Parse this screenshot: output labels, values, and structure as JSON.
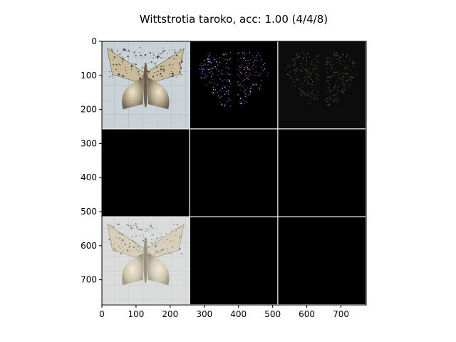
{
  "chart_data": {
    "type": "image-grid",
    "title": "Wittstrotia taroko, acc: 1.00 (4/4/8)",
    "xlabel": "",
    "ylabel": "",
    "xlim": [
      0,
      774
    ],
    "ylim": [
      774,
      0
    ],
    "x_ticks": [
      0,
      100,
      200,
      300,
      400,
      500,
      600,
      700
    ],
    "y_ticks": [
      0,
      100,
      200,
      300,
      400,
      500,
      600,
      700
    ],
    "grid": {
      "rows": 3,
      "cols": 3,
      "tile_size": 256,
      "separator": 2,
      "separator_color": "#ffffff"
    },
    "tiles": [
      {
        "row": 0,
        "col": 0,
        "content": "moth-photo",
        "background": "#c9d2d6"
      },
      {
        "row": 0,
        "col": 1,
        "content": "saliency-bright",
        "background": "#000000"
      },
      {
        "row": 0,
        "col": 2,
        "content": "saliency-dim",
        "background": "#0c0c0c"
      },
      {
        "row": 1,
        "col": 0,
        "content": "black",
        "background": "#000000"
      },
      {
        "row": 1,
        "col": 1,
        "content": "black",
        "background": "#000000"
      },
      {
        "row": 1,
        "col": 2,
        "content": "black",
        "background": "#000000"
      },
      {
        "row": 2,
        "col": 0,
        "content": "moth-photo-faded",
        "background": "#dadcdc"
      },
      {
        "row": 2,
        "col": 1,
        "content": "black",
        "background": "#000000"
      },
      {
        "row": 2,
        "col": 2,
        "content": "black",
        "background": "#000000"
      }
    ]
  }
}
